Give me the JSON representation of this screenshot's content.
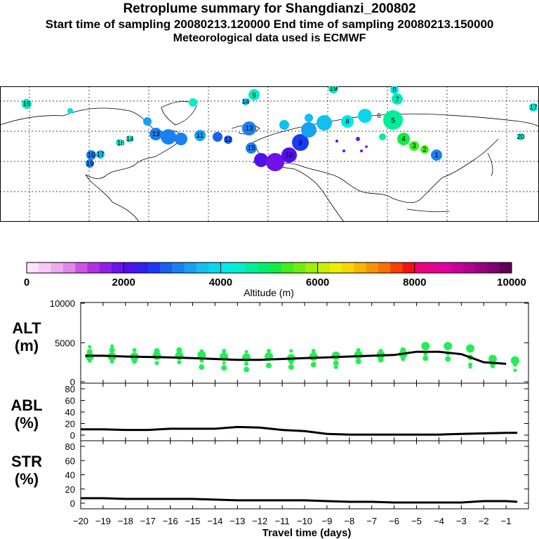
{
  "header": {
    "title": "Retroplume summary for Shangdianzi_200802",
    "sampling": "Start time of sampling 20080213.120000     End time of sampling 20080213.150000",
    "met": "Meteorological data used is ECMWF"
  },
  "colors": {
    "alt_dots": "#22ee55",
    "line": "#000000",
    "frame": "#000000"
  },
  "colorbar": {
    "tick_labels": [
      "0",
      "2000",
      "4000",
      "6000",
      "8000",
      "10000"
    ],
    "label": "Altitude (m)",
    "colors": [
      "#ffe0ff",
      "#f6c8f6",
      "#eeaaee",
      "#e088e8",
      "#cc55e6",
      "#b030e6",
      "#9020e8",
      "#7010ea",
      "#5010ee",
      "#3020f0",
      "#1a3cf2",
      "#1a60f2",
      "#1a80f2",
      "#18a0f2",
      "#10c0f0",
      "#08d8ee",
      "#00e8e8",
      "#00eec8",
      "#00ee9c",
      "#00ee70",
      "#10ee40",
      "#40ee20",
      "#70ee10",
      "#a0ee08",
      "#c8ee00",
      "#eeee00",
      "#f8d400",
      "#f8b400",
      "#f89400",
      "#f87000",
      "#f84000",
      "#f81010",
      "#f0007a",
      "#e80090",
      "#e000a0",
      "#c80098",
      "#b00090",
      "#980080",
      "#800070",
      "#600058"
    ]
  },
  "chart_data": [
    {
      "type": "scatter",
      "name": "ALT",
      "label_line1": "ALT",
      "label_line2": "(m)",
      "ylim": [
        0,
        10000
      ],
      "ytick_labels": [
        "10000",
        "5000",
        "0"
      ],
      "median": [
        [
          -19.8,
          3400
        ],
        [
          -19,
          3400
        ],
        [
          -18,
          3300
        ],
        [
          -17,
          3250
        ],
        [
          -16,
          3200
        ],
        [
          -15,
          3100
        ],
        [
          -14,
          3000
        ],
        [
          -13,
          2900
        ],
        [
          -12,
          2900
        ],
        [
          -11,
          3000
        ],
        [
          -10,
          3100
        ],
        [
          -9,
          3200
        ],
        [
          -8,
          3300
        ],
        [
          -7,
          3400
        ],
        [
          -6,
          3500
        ],
        [
          -5,
          3900
        ],
        [
          -4,
          3900
        ],
        [
          -3,
          3600
        ],
        [
          -2,
          2600
        ],
        [
          -1,
          2400
        ]
      ],
      "clusters": [
        {
          "t": -19.6,
          "y": [
            3300,
            3900,
            2800,
            4500
          ]
        },
        {
          "t": -18.6,
          "y": [
            3300,
            4100,
            2700,
            4600
          ]
        },
        {
          "t": -17.6,
          "y": [
            3300,
            2800,
            4100,
            2600
          ]
        },
        {
          "t": -16.6,
          "y": [
            3400,
            4000,
            2500
          ]
        },
        {
          "t": -15.6,
          "y": [
            3400,
            4100,
            2600
          ]
        },
        {
          "t": -14.6,
          "y": [
            3500,
            2000,
            2800,
            4000
          ]
        },
        {
          "t": -13.6,
          "y": [
            3300,
            1900,
            4000,
            2500
          ]
        },
        {
          "t": -12.6,
          "y": [
            3200,
            1700,
            2400,
            3900
          ]
        },
        {
          "t": -11.6,
          "y": [
            3300,
            2200,
            4000
          ]
        },
        {
          "t": -10.6,
          "y": [
            3100,
            2000,
            2600,
            4000
          ]
        },
        {
          "t": -9.6,
          "y": [
            3300,
            2300,
            4000
          ]
        },
        {
          "t": -8.6,
          "y": [
            3400,
            2500,
            2000
          ]
        },
        {
          "t": -7.6,
          "y": [
            3500,
            2700,
            4100
          ]
        },
        {
          "t": -6.6,
          "y": [
            3500,
            2900,
            4000
          ]
        },
        {
          "t": -5.6,
          "y": [
            3600,
            4100,
            3000
          ]
        },
        {
          "t": -4.6,
          "y": [
            4600,
            3100,
            3700
          ]
        },
        {
          "t": -3.6,
          "y": [
            4600,
            3000,
            3700
          ]
        },
        {
          "t": -2.6,
          "y": [
            4300,
            3200,
            2300,
            2000
          ]
        },
        {
          "t": -1.6,
          "y": [
            3000,
            2400,
            2100
          ]
        },
        {
          "t": -0.6,
          "y": [
            2800,
            3000,
            2300,
            1600
          ]
        }
      ]
    },
    {
      "type": "line",
      "name": "ABL",
      "label_line1": "ABL",
      "label_line2": "(%)",
      "ylim": [
        0,
        90
      ],
      "ytick_labels": [
        "80",
        "60",
        "40",
        "20",
        "0"
      ],
      "x": [
        -20,
        -19,
        -18,
        -17,
        -16,
        -15,
        -14,
        -13,
        -12,
        -11,
        -10,
        -9,
        -8,
        -7,
        -6,
        -5,
        -4,
        -3,
        -2,
        -1,
        -0.5
      ],
      "values": [
        10,
        10,
        9,
        9,
        11,
        11,
        11,
        14,
        13,
        9,
        7,
        2,
        1,
        1,
        1,
        1,
        1,
        2,
        3,
        4,
        4
      ]
    },
    {
      "type": "line",
      "name": "STR",
      "label_line1": "STR",
      "label_line2": "(%)",
      "ylim": [
        0,
        90
      ],
      "ytick_labels": [
        "80",
        "60",
        "40",
        "20",
        "0"
      ],
      "x": [
        -20,
        -19,
        -18,
        -17,
        -16,
        -15,
        -14,
        -13,
        -12,
        -11,
        -10,
        -9,
        -8,
        -7,
        -6,
        -5,
        -4,
        -3,
        -2,
        -1,
        -0.5
      ],
      "values": [
        7,
        7,
        6,
        6,
        6,
        6,
        5,
        4,
        4,
        4,
        4,
        3,
        2,
        2,
        1,
        1,
        1,
        1,
        3,
        3,
        2
      ]
    }
  ],
  "xaxis": {
    "tick_labels": [
      "−20",
      "−19",
      "−18",
      "−17",
      "−16",
      "−15",
      "−14",
      "−13",
      "−12",
      "−11",
      "−10",
      "−9",
      "−8",
      "−7",
      "−6",
      "−5",
      "−4",
      "−3",
      "−2",
      "−1"
    ],
    "label": "Travel time (days)"
  },
  "map": {
    "point_labels": [
      "16",
      "13",
      "9",
      "14",
      "18",
      "19",
      "7",
      "17",
      "15",
      "12",
      "11",
      "10",
      "8",
      "6",
      "5",
      "4",
      "3",
      "2",
      "1",
      "20"
    ]
  }
}
